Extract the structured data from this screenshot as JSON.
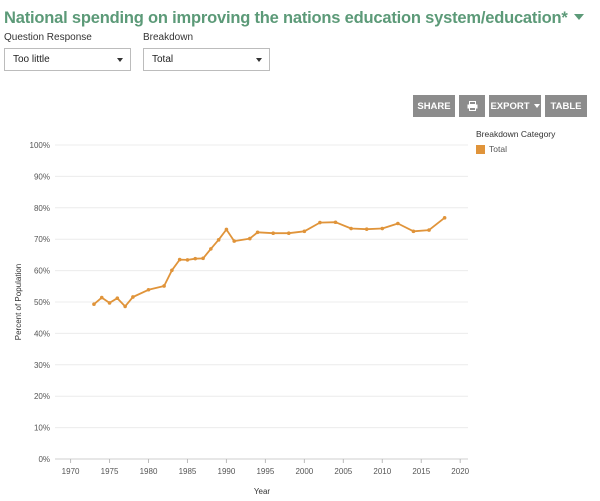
{
  "header": {
    "title": "National spending on improving the nations education system/education*"
  },
  "filters": {
    "question": {
      "label": "Question Response",
      "value": "Too little"
    },
    "breakdown": {
      "label": "Breakdown",
      "value": "Total"
    }
  },
  "toolbar": {
    "share": "SHARE",
    "print_icon": "printer-icon",
    "export": "EXPORT",
    "table": "TABLE"
  },
  "colors": {
    "title": "#5c9a78",
    "series": "#e0943a",
    "button": "#8c8c8c"
  },
  "chart_data": {
    "type": "line",
    "xlabel": "Year",
    "ylabel": "Percent of Population",
    "xlim": [
      1968,
      2021
    ],
    "ylim": [
      0,
      100
    ],
    "x_ticks": [
      1970,
      1975,
      1980,
      1985,
      1990,
      1995,
      2000,
      2005,
      2010,
      2015,
      2020
    ],
    "y_ticks": [
      0,
      10,
      20,
      30,
      40,
      50,
      60,
      70,
      80,
      90,
      100
    ],
    "y_tick_labels": [
      "0%",
      "10%",
      "20%",
      "30%",
      "40%",
      "50%",
      "60%",
      "70%",
      "80%",
      "90%",
      "100%"
    ],
    "grid": true,
    "legend": {
      "title": "Breakdown Category",
      "placement": "top-right"
    },
    "series": [
      {
        "name": "Total",
        "color": "#e0943a",
        "x": [
          1973,
          1974,
          1975,
          1976,
          1977,
          1978,
          1980,
          1982,
          1983,
          1984,
          1985,
          1986,
          1987,
          1988,
          1989,
          1990,
          1991,
          1993,
          1994,
          1996,
          1998,
          2000,
          2002,
          2004,
          2006,
          2008,
          2010,
          2012,
          2014,
          2016,
          2018
        ],
        "values": [
          49.3,
          51.4,
          49.7,
          51.2,
          48.6,
          51.6,
          53.9,
          55.1,
          60.1,
          63.5,
          63.4,
          63.8,
          63.9,
          66.9,
          69.8,
          73.1,
          69.4,
          70.2,
          72.2,
          71.9,
          71.9,
          72.5,
          75.3,
          75.4,
          73.4,
          73.2,
          73.4,
          75.0,
          72.5,
          72.9,
          76.8
        ]
      }
    ]
  }
}
